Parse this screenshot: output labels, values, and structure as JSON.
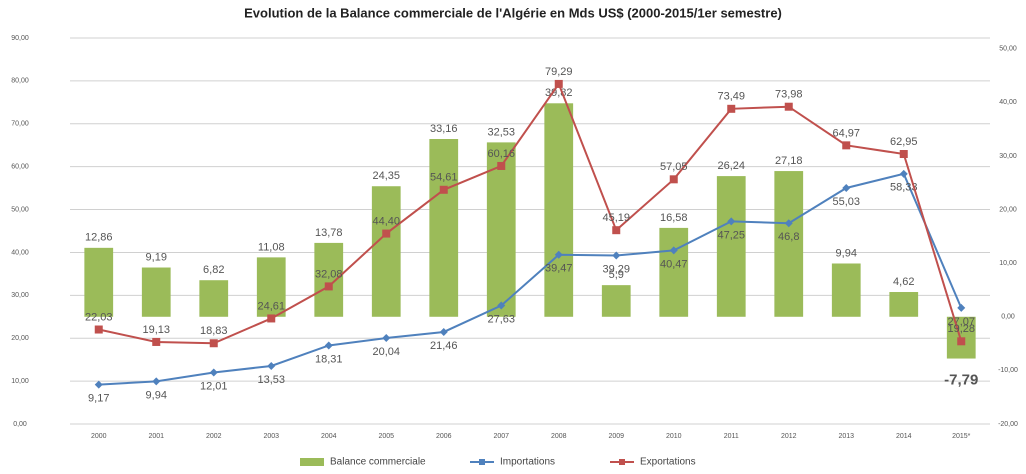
{
  "chart_data": {
    "type": "bar-line",
    "title": "Evolution de la Balance commerciale de l'Algérie en Mds US$ (2000-2015/1er semestre)",
    "categories": [
      "2000",
      "2001",
      "2002",
      "2003",
      "2004",
      "2005",
      "2006",
      "2007",
      "2008",
      "2009",
      "2010",
      "2011",
      "2012",
      "2013",
      "2014",
      "2015*"
    ],
    "series": [
      {
        "name": "Balance commerciale",
        "type": "bar",
        "axis": "y2",
        "color": "#9bbb59",
        "values": [
          12.86,
          9.19,
          6.82,
          11.08,
          13.78,
          24.35,
          33.16,
          32.53,
          39.82,
          5.9,
          16.58,
          26.24,
          27.18,
          9.94,
          4.62,
          -7.79
        ],
        "value_labels": [
          "12,86",
          "9,19",
          "6,82",
          "11,08",
          "13,78",
          "24,35",
          "33,16",
          "32,53",
          "39,82",
          "5,9",
          "16,58",
          "26,24",
          "27,18",
          "9,94",
          "4,62",
          "-7,79"
        ]
      },
      {
        "name": "Importations",
        "type": "line",
        "color": "#4f81bd",
        "values": [
          9.17,
          9.94,
          12.01,
          13.53,
          18.31,
          20.04,
          21.46,
          27.63,
          39.47,
          39.29,
          40.47,
          47.25,
          46.8,
          55.03,
          58.33,
          27.07
        ],
        "value_labels": [
          "9,17",
          "9,94",
          "12,01",
          "13,53",
          "18,31",
          "20,04",
          "21,46",
          "27,63",
          "39,47",
          "39,29",
          "40,47",
          "47,25",
          "46,8",
          "55,03",
          "58,33",
          "27,07"
        ]
      },
      {
        "name": "Exportations",
        "type": "line",
        "color": "#c0504d",
        "values": [
          22.03,
          19.13,
          18.83,
          24.61,
          32.08,
          44.4,
          54.61,
          60.16,
          79.29,
          45.19,
          57.05,
          73.49,
          73.98,
          64.97,
          62.95,
          19.28
        ],
        "value_labels": [
          "22,03",
          "19,13",
          "18,83",
          "24,61",
          "32,08",
          "44,40",
          "54,61",
          "60,16",
          "79,29",
          "45,19",
          "57,05",
          "73,49",
          "73,98",
          "64,97",
          "62,95",
          "19,28"
        ]
      }
    ],
    "ylim": [
      0,
      90
    ],
    "yticks": [
      {
        "value": 0,
        "label": "0,00"
      },
      {
        "value": 10,
        "label": "10,00"
      },
      {
        "value": 20,
        "label": "20,00"
      },
      {
        "value": 30,
        "label": "30,00"
      },
      {
        "value": 40,
        "label": "40,00"
      },
      {
        "value": 50,
        "label": "50,00"
      },
      {
        "value": 60,
        "label": "60,00"
      },
      {
        "value": 70,
        "label": "70,00"
      },
      {
        "value": 80,
        "label": "80,00"
      },
      {
        "value": 90,
        "label": "90,00"
      }
    ],
    "y2lim": [
      -20,
      52
    ],
    "y2ticks": [
      {
        "value": -20,
        "label": "-20,00"
      },
      {
        "value": -10,
        "label": "-10,00"
      },
      {
        "value": 0,
        "label": "0,00"
      },
      {
        "value": 10,
        "label": "10,00"
      },
      {
        "value": 20,
        "label": "20,00"
      },
      {
        "value": 30,
        "label": "30,00"
      },
      {
        "value": 40,
        "label": "40,00"
      },
      {
        "value": 50,
        "label": "50,00"
      }
    ],
    "grid": true,
    "legend": "bottom"
  }
}
